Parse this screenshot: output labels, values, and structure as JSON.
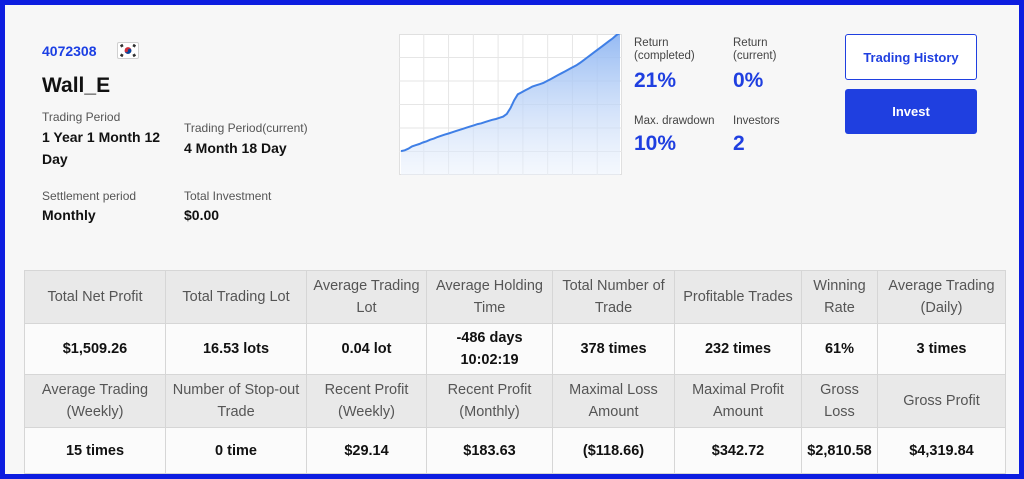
{
  "account": {
    "id": "4072308",
    "flag_icon": "south-korea-flag-icon",
    "name": "Wall_E"
  },
  "details": {
    "trading_period_label": "Trading Period",
    "trading_period_value_line1": "1 Year 1 Month 12",
    "trading_period_value_line2": "Day",
    "trading_period_current_label": "Trading Period(current)",
    "trading_period_current_value": "4 Month 18 Day",
    "settlement_label": "Settlement period",
    "settlement_value": "Monthly",
    "total_investment_label": "Total Investment",
    "total_investment_value": "$0.00"
  },
  "chart_data": {
    "type": "area",
    "title": "",
    "xlabel": "",
    "ylabel": "",
    "x": [
      0,
      1,
      2,
      3,
      4,
      5,
      6,
      7,
      8,
      9,
      10,
      11,
      12,
      13,
      14,
      15,
      16,
      17,
      18,
      19,
      20,
      21,
      22,
      23,
      24,
      25,
      26,
      27,
      28,
      29,
      30,
      31,
      32,
      33,
      34,
      35,
      36,
      37,
      38,
      39,
      40,
      41,
      42,
      43,
      44,
      45,
      46,
      47,
      48,
      49,
      50,
      51,
      52,
      53,
      54,
      55,
      56,
      57,
      58,
      59,
      60
    ],
    "values": [
      0,
      0.2,
      0.6,
      1.2,
      1.5,
      1.8,
      2.2,
      2.5,
      2.9,
      3.2,
      3.6,
      3.9,
      4.2,
      4.5,
      4.8,
      5.1,
      5.4,
      5.7,
      6.0,
      6.3,
      6.6,
      6.9,
      7.1,
      7.4,
      7.7,
      8.0,
      8.2,
      8.5,
      8.8,
      9.5,
      11.0,
      13.0,
      14.5,
      15.0,
      15.5,
      16.0,
      16.5,
      16.8,
      17.1,
      17.4,
      17.9,
      18.4,
      18.9,
      19.4,
      19.9,
      20.4,
      20.9,
      21.4,
      21.9,
      22.5,
      23.2,
      23.9,
      24.6,
      25.3,
      26.0,
      26.7,
      27.4,
      28.1,
      28.8,
      29.6,
      30.2
    ],
    "ylim": [
      -1,
      34
    ],
    "grid": true,
    "color": "#3f7fe6"
  },
  "stats": {
    "return_completed_label_line1": "Return",
    "return_completed_label_line2": "(completed)",
    "return_completed_value": "21%",
    "return_current_label_line1": "Return",
    "return_current_label_line2": "(current)",
    "return_current_value": "0%",
    "max_drawdown_label": "Max. drawdown",
    "max_drawdown_value": "10%",
    "investors_label": "Investors",
    "investors_value": "2"
  },
  "buttons": {
    "trading_history": "Trading History",
    "invest": "Invest"
  },
  "metrics": {
    "row1_headers": [
      [
        "Total Net Profit"
      ],
      [
        "Total Trading Lot"
      ],
      [
        "Average Trading",
        "Lot"
      ],
      [
        "Average Holding",
        "Time"
      ],
      [
        "Total Number of",
        "Trade"
      ],
      [
        "Profitable Trades"
      ],
      [
        "Winning",
        "Rate"
      ],
      [
        "Average Trading",
        "(Daily)"
      ]
    ],
    "row1_values": [
      [
        "$1,509.26"
      ],
      [
        "16.53 lots"
      ],
      [
        "0.04 lot"
      ],
      [
        "-486 days",
        "10:02:19"
      ],
      [
        "378 times"
      ],
      [
        "232 times"
      ],
      [
        "61%"
      ],
      [
        "3 times"
      ]
    ],
    "row2_headers": [
      [
        "Average Trading",
        "(Weekly)"
      ],
      [
        "Number of Stop-out",
        "Trade"
      ],
      [
        "Recent Profit",
        "(Weekly)"
      ],
      [
        "Recent Profit",
        "(Monthly)"
      ],
      [
        "Maximal Loss",
        "Amount"
      ],
      [
        "Maximal Profit",
        "Amount"
      ],
      [
        "Gross",
        "Loss"
      ],
      [
        "Gross Profit"
      ]
    ],
    "row2_values": [
      [
        "15 times"
      ],
      [
        "0 time"
      ],
      [
        "$29.14"
      ],
      [
        "$183.63"
      ],
      [
        "($118.66)"
      ],
      [
        "$342.72"
      ],
      [
        "$2,810.58"
      ],
      [
        "$4,319.84"
      ]
    ]
  }
}
